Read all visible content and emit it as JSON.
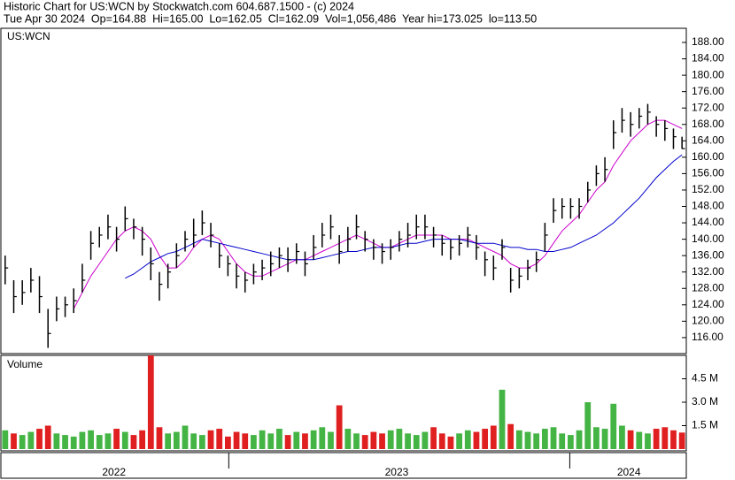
{
  "header": {
    "title": "Historic Chart for US:WCN by Stockwatch.com 604.687.1500 - (c) 2024",
    "quote": "Tue Apr 30 2024  Op=164.88  Hi=165.00  Lo=162.05  Cl=162.09  Vol=1,056,486  Year hi=173.025  lo=113.50"
  },
  "chart_data": [
    {
      "type": "ohlc",
      "label": "US:WCN",
      "ylim": [
        112.1,
        191.45
      ],
      "yticks": [
        {
          "value": 116,
          "label": "116.00"
        },
        {
          "value": 120,
          "label": "120.00"
        },
        {
          "value": 124,
          "label": "124.00"
        },
        {
          "value": 128,
          "label": "128.00"
        },
        {
          "value": 132,
          "label": "132.00"
        },
        {
          "value": 136,
          "label": "136.00"
        },
        {
          "value": 140,
          "label": "140.00"
        },
        {
          "value": 144,
          "label": "144.00"
        },
        {
          "value": 148,
          "label": "148.00"
        },
        {
          "value": 152,
          "label": "152.00"
        },
        {
          "value": 156,
          "label": "156.00"
        },
        {
          "value": 160,
          "label": "160.00"
        },
        {
          "value": 164,
          "label": "164.00"
        },
        {
          "value": 168,
          "label": "168.00"
        },
        {
          "value": 172,
          "label": "172.00"
        },
        {
          "value": 176,
          "label": "176.00"
        },
        {
          "value": 180,
          "label": "180.00"
        },
        {
          "value": 184,
          "label": "184.00"
        },
        {
          "value": 188,
          "label": "188.00"
        }
      ],
      "xlim": [
        0,
        80
      ],
      "xticks": [
        {
          "value": 13.2,
          "label": "2022"
        },
        {
          "value": 46.2,
          "label": "2023"
        },
        {
          "value": 73.3,
          "label": "2024"
        }
      ],
      "year_bounds": [
        26.6,
        66.4
      ],
      "bar_color": "#000000",
      "high": [
        136,
        130,
        130,
        133,
        131,
        123,
        126,
        126,
        128,
        134,
        142,
        143,
        146,
        143,
        148,
        145,
        143,
        138,
        132,
        134,
        139,
        142,
        145,
        147,
        144,
        139,
        136,
        134,
        132,
        134,
        135,
        137,
        138,
        138,
        139,
        137,
        141,
        144,
        146,
        141,
        143,
        146,
        142,
        140,
        139,
        140,
        142,
        144,
        146,
        146,
        143,
        141,
        140,
        141,
        143,
        141,
        137,
        136,
        140,
        133,
        133,
        135,
        137,
        144,
        150,
        150,
        150,
        150,
        154,
        158,
        160,
        169,
        172,
        171,
        172,
        173,
        170,
        169,
        167,
        165
      ],
      "low": [
        129,
        122,
        124,
        127,
        122,
        113.5,
        120,
        121,
        122,
        127,
        135,
        138,
        140,
        137,
        142,
        140,
        136,
        130,
        125,
        128,
        133,
        137,
        138,
        141,
        138,
        133,
        131,
        128,
        127,
        129,
        130,
        131,
        133,
        132,
        134,
        131,
        135,
        138,
        140,
        134,
        137,
        140,
        137,
        135,
        134,
        135,
        137,
        138,
        140,
        140,
        138,
        136,
        135,
        136,
        138,
        135,
        131,
        130,
        135,
        127,
        128,
        130,
        132,
        137,
        144,
        145,
        145,
        145,
        149,
        153,
        154,
        162,
        166,
        165,
        167,
        168,
        165,
        164,
        162,
        162.05
      ],
      "close": [
        133,
        126,
        127,
        130,
        126,
        117,
        123,
        124,
        125,
        130,
        139,
        141,
        143,
        140,
        145,
        143,
        140,
        134,
        129,
        132,
        136,
        140,
        141,
        144,
        141,
        136,
        134,
        131,
        130,
        132,
        133,
        134,
        136,
        135,
        137,
        134,
        138,
        141,
        143,
        137,
        140,
        143,
        140,
        138,
        137,
        138,
        140,
        141,
        143,
        143,
        141,
        139,
        138,
        139,
        141,
        138,
        135,
        133,
        138,
        130,
        131,
        133,
        135,
        141,
        147,
        148,
        148,
        148,
        152,
        156,
        157,
        166,
        169,
        168,
        170,
        171,
        168,
        167,
        165,
        162.09
      ],
      "moving_averages": [
        {
          "color": "#cc00cc",
          "values": [
            null,
            null,
            null,
            null,
            null,
            null,
            null,
            null,
            123,
            127,
            131,
            134,
            137,
            140,
            142,
            143,
            142,
            140,
            136,
            133,
            133,
            135,
            138,
            140,
            141,
            140,
            137,
            134,
            132,
            131,
            131,
            132,
            133,
            134,
            135,
            135,
            136,
            137,
            138,
            139,
            140,
            141,
            140,
            139,
            138,
            138,
            139,
            140,
            141,
            141,
            141,
            141,
            140,
            140,
            140,
            139,
            138,
            137,
            136,
            134,
            133,
            133,
            134,
            136,
            139,
            142,
            144,
            146,
            149,
            152,
            154,
            158,
            161,
            164,
            166,
            168,
            169,
            169,
            168,
            167
          ]
        },
        {
          "color": "#0000cc",
          "values": [
            null,
            null,
            null,
            null,
            null,
            null,
            null,
            null,
            null,
            null,
            null,
            null,
            null,
            null,
            130.5,
            131.5,
            133,
            134.5,
            135.5,
            136.5,
            137,
            138,
            139,
            140,
            139.5,
            139,
            138.5,
            138,
            137.5,
            137,
            136.5,
            136,
            135.5,
            135,
            135,
            135,
            135,
            135.5,
            136,
            136.5,
            137,
            137,
            137.5,
            138,
            138,
            138,
            138.5,
            139,
            139,
            139.5,
            140,
            140,
            140,
            140,
            139.5,
            139,
            139,
            139,
            138.5,
            138,
            138,
            137.5,
            137.5,
            137,
            137,
            137.5,
            138,
            139,
            140,
            141,
            142.5,
            144,
            146,
            148,
            150,
            152.5,
            155,
            157,
            159,
            160.6
          ]
        }
      ]
    },
    {
      "type": "volume",
      "label": "Volume",
      "ylim": [
        0,
        6
      ],
      "yticks": [
        {
          "value": 1.5,
          "label": "1.5 M"
        },
        {
          "value": 3.0,
          "label": "3.0 M"
        },
        {
          "value": 4.5,
          "label": "4.5 M"
        }
      ],
      "up_color": "#44b444",
      "down_color": "#e02020",
      "values": [
        1.2,
        1.0,
        0.9,
        1.1,
        1.3,
        1.5,
        1.0,
        0.9,
        0.8,
        1.1,
        1.2,
        0.9,
        1.0,
        1.3,
        1.1,
        0.9,
        1.2,
        6.0,
        1.4,
        1.0,
        1.1,
        1.5,
        1.0,
        0.9,
        1.2,
        1.3,
        0.8,
        1.1,
        1.0,
        0.9,
        1.2,
        1.0,
        1.3,
        0.9,
        1.1,
        1.0,
        1.2,
        1.4,
        1.1,
        2.8,
        1.3,
        1.0,
        0.9,
        1.1,
        1.0,
        1.2,
        1.3,
        1.0,
        0.9,
        1.1,
        1.4,
        1.0,
        0.8,
        1.0,
        1.2,
        1.1,
        1.3,
        1.5,
        3.8,
        1.6,
        1.2,
        1.1,
        1.0,
        1.3,
        1.4,
        1.0,
        0.9,
        1.2,
        3.0,
        1.4,
        1.3,
        2.9,
        1.5,
        1.2,
        1.1,
        1.0,
        1.3,
        1.4,
        1.2,
        1.056486
      ]
    }
  ]
}
